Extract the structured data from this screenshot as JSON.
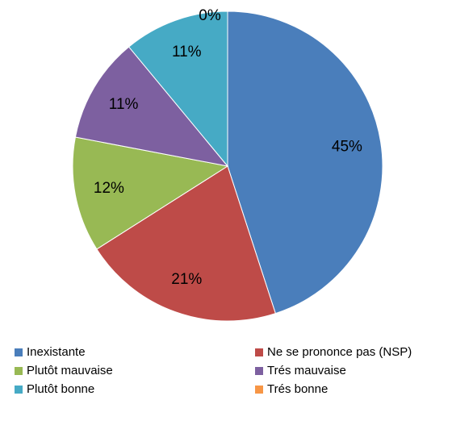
{
  "chart_data": {
    "type": "pie",
    "categories": [
      "Inexistante",
      "Ne se prononce pas (NSP)",
      "Plutôt mauvaise",
      "Trés mauvaise",
      "Plutôt bonne",
      "Trés bonne"
    ],
    "values": [
      45,
      21,
      12,
      11,
      11,
      0
    ],
    "value_labels": [
      "45%",
      "21%",
      "12%",
      "11%",
      "11%",
      "0%"
    ],
    "colors": [
      "#4a7ebb",
      "#be4b48",
      "#98b954",
      "#7d60a0",
      "#46aac5",
      "#f79646"
    ],
    "legend": "bottom"
  }
}
